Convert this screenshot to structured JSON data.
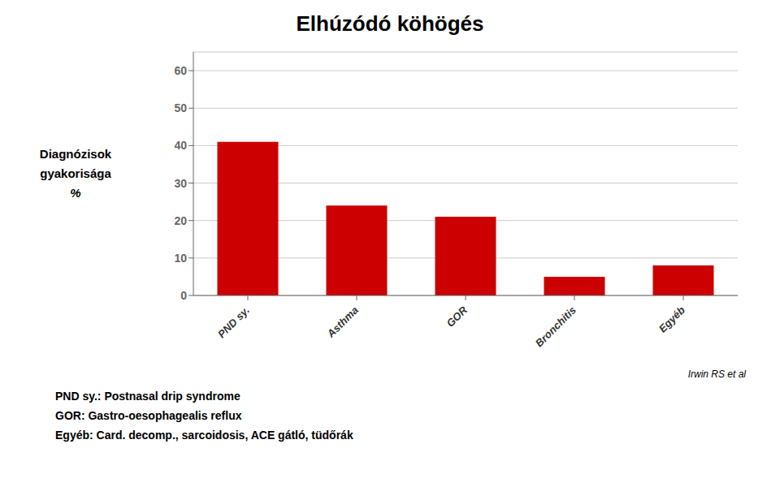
{
  "chart_data": {
    "type": "bar",
    "title": "Elhúzódó köhögés",
    "ylabel": [
      "Diagnózisok",
      "gyakorisága",
      "%"
    ],
    "categories": [
      "PND sy.",
      "Asthma",
      "GOR",
      "Bronchitis",
      "Egyéb"
    ],
    "values": [
      41,
      24,
      21,
      5,
      8
    ],
    "color": "#CC0000",
    "ylim": [
      0,
      65
    ],
    "yticks": [
      0,
      10,
      20,
      30,
      40,
      50,
      60
    ],
    "grid": true,
    "annotations": [
      "Irwin RS et al",
      "PND sy.: Postnasal drip syndrome",
      "GOR: Gastro-oesophagealis reflux",
      "Egyéb: Card. decomp., sarcoidosis, ACE gátló, tüdőrák"
    ]
  }
}
